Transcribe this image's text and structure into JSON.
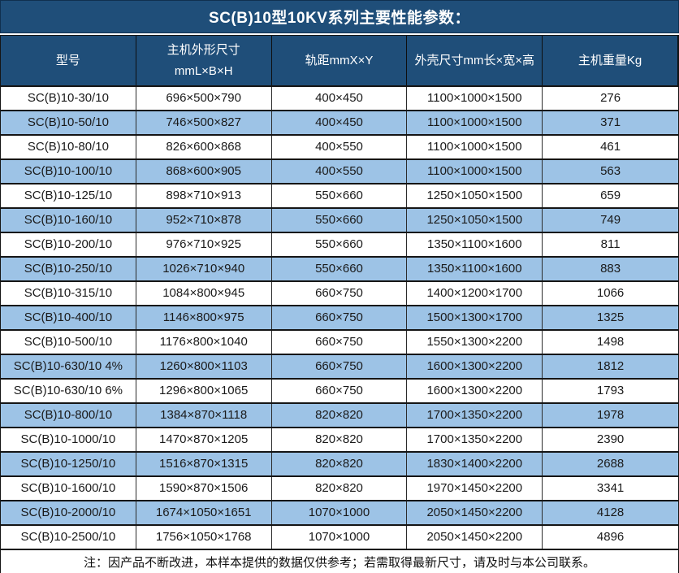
{
  "title": "SC(B)10型10KV系列主要性能参数：",
  "note": "注：因产品不断改进，本样本提供的数据仅供参考；若需取得最新尺寸，请及时与本公司联系。",
  "colors": {
    "header_bg": "#1F4E79",
    "header_text": "#FFFFFF",
    "row_alt_bg": "#9DC3E6",
    "row_bg": "#FFFFFF",
    "body_text": "#1A1A1A",
    "border": "#151515"
  },
  "table": {
    "headers": [
      "型号",
      "主机外形尺寸\nmmL×B×H",
      "轨距mmX×Y",
      "外壳尺寸mm长×宽×高",
      "主机重量Kg"
    ],
    "column_keys": [
      "model",
      "outline",
      "gauge",
      "shell",
      "weight"
    ],
    "rows": [
      {
        "model": "SC(B)10-30/10",
        "outline": "696×500×790",
        "gauge": "400×450",
        "shell": "1100×1000×1500",
        "weight": "276"
      },
      {
        "model": "SC(B)10-50/10",
        "outline": "746×500×827",
        "gauge": "400×450",
        "shell": "1100×1000×1500",
        "weight": "371"
      },
      {
        "model": "SC(B)10-80/10",
        "outline": "826×600×868",
        "gauge": "400×550",
        "shell": "1100×1000×1500",
        "weight": "461"
      },
      {
        "model": "SC(B)10-100/10",
        "outline": "868×600×905",
        "gauge": "400×550",
        "shell": "1100×1000×1500",
        "weight": "563"
      },
      {
        "model": "SC(B)10-125/10",
        "outline": "898×710×913",
        "gauge": "550×660",
        "shell": "1250×1050×1500",
        "weight": "659"
      },
      {
        "model": "SC(B)10-160/10",
        "outline": "952×710×878",
        "gauge": "550×660",
        "shell": "1250×1050×1500",
        "weight": "749"
      },
      {
        "model": "SC(B)10-200/10",
        "outline": "976×710×925",
        "gauge": "550×660",
        "shell": "1350×1100×1600",
        "weight": "811"
      },
      {
        "model": "SC(B)10-250/10",
        "outline": "1026×710×940",
        "gauge": "550×660",
        "shell": "1350×1100×1600",
        "weight": "883"
      },
      {
        "model": "SC(B)10-315/10",
        "outline": "1084×800×945",
        "gauge": "660×750",
        "shell": "1400×1200×1700",
        "weight": "1066"
      },
      {
        "model": "SC(B)10-400/10",
        "outline": "1146×800×975",
        "gauge": "660×750",
        "shell": "1500×1300×1700",
        "weight": "1325"
      },
      {
        "model": "SC(B)10-500/10",
        "outline": "1176×800×1040",
        "gauge": "660×750",
        "shell": "1550×1300×2200",
        "weight": "1498"
      },
      {
        "model": "SC(B)10-630/10 4%",
        "outline": "1260×800×1103",
        "gauge": "660×750",
        "shell": "1600×1300×2200",
        "weight": "1812"
      },
      {
        "model": "SC(B)10-630/10 6%",
        "outline": "1296×800×1065",
        "gauge": "660×750",
        "shell": "1600×1300×2200",
        "weight": "1793"
      },
      {
        "model": "SC(B)10-800/10",
        "outline": "1384×870×1118",
        "gauge": "820×820",
        "shell": "1700×1350×2200",
        "weight": "1978"
      },
      {
        "model": "SC(B)10-1000/10",
        "outline": "1470×870×1205",
        "gauge": "820×820",
        "shell": "1700×1350×2200",
        "weight": "2390"
      },
      {
        "model": "SC(B)10-1250/10",
        "outline": "1516×870×1315",
        "gauge": "820×820",
        "shell": "1830×1400×2200",
        "weight": "2688"
      },
      {
        "model": "SC(B)10-1600/10",
        "outline": "1590×870×1506",
        "gauge": "820×820",
        "shell": "1970×1450×2200",
        "weight": "3341"
      },
      {
        "model": "SC(B)10-2000/10",
        "outline": "1674×1050×1651",
        "gauge": "1070×1000",
        "shell": "2050×1450×2200",
        "weight": "4128"
      },
      {
        "model": "SC(B)10-2500/10",
        "outline": "1756×1050×1768",
        "gauge": "1070×1000",
        "shell": "2050×1450×2200",
        "weight": "4896"
      }
    ]
  }
}
